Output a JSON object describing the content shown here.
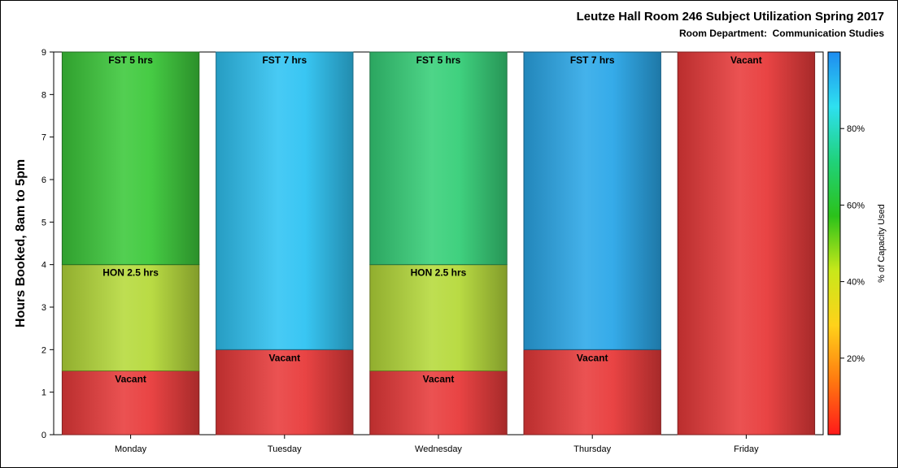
{
  "chart_data": {
    "type": "bar",
    "stacked": true,
    "title": "Leutze Hall Room 246 Subject Utilization Spring 2017",
    "subtitle": "Room Department:  Communication Studies",
    "ylabel": "Hours Booked, 8am to 5pm",
    "ylim": [
      0,
      9
    ],
    "yticks": [
      "0",
      "1",
      "2",
      "3",
      "4",
      "5",
      "6",
      "7",
      "8",
      "9"
    ],
    "categories": [
      "Monday",
      "Tuesday",
      "Wednesday",
      "Thursday",
      "Friday"
    ],
    "stacks": [
      {
        "day": "Monday",
        "segments": [
          {
            "label": "Vacant",
            "value": 1.5,
            "color": "#e83a3a"
          },
          {
            "label": "HON 2.5 hrs",
            "value": 2.5,
            "color": "#b5d93a"
          },
          {
            "label": "FST 5 hrs",
            "value": 5,
            "color": "#3cc83a"
          }
        ]
      },
      {
        "day": "Tuesday",
        "segments": [
          {
            "label": "Vacant",
            "value": 2,
            "color": "#e83a3a"
          },
          {
            "label": "FST 7 hrs",
            "value": 7,
            "color": "#2fc3f2"
          }
        ]
      },
      {
        "day": "Wednesday",
        "segments": [
          {
            "label": "Vacant",
            "value": 1.5,
            "color": "#e83a3a"
          },
          {
            "label": "HON 2.5 hrs",
            "value": 2.5,
            "color": "#b5d93a"
          },
          {
            "label": "FST 5 hrs",
            "value": 5,
            "color": "#36cf78"
          }
        ]
      },
      {
        "day": "Thursday",
        "segments": [
          {
            "label": "Vacant",
            "value": 2,
            "color": "#e83a3a"
          },
          {
            "label": "FST 7 hrs",
            "value": 7,
            "color": "#2aa7e8"
          }
        ]
      },
      {
        "day": "Friday",
        "segments": [
          {
            "label": "Vacant",
            "value": 9,
            "color": "#e83a3a"
          }
        ]
      }
    ],
    "colorbar": {
      "label": "% of Capacity Used",
      "ticks": [
        "20%",
        "40%",
        "60%",
        "80%"
      ],
      "tick_values": [
        20,
        40,
        60,
        80
      ],
      "range": [
        0,
        100
      ],
      "colors": [
        "#ff1a1a",
        "#ff7a10",
        "#ffd21a",
        "#c8e81a",
        "#2bc21a",
        "#20d27a",
        "#2ee0f0",
        "#1e8cf0"
      ]
    }
  }
}
